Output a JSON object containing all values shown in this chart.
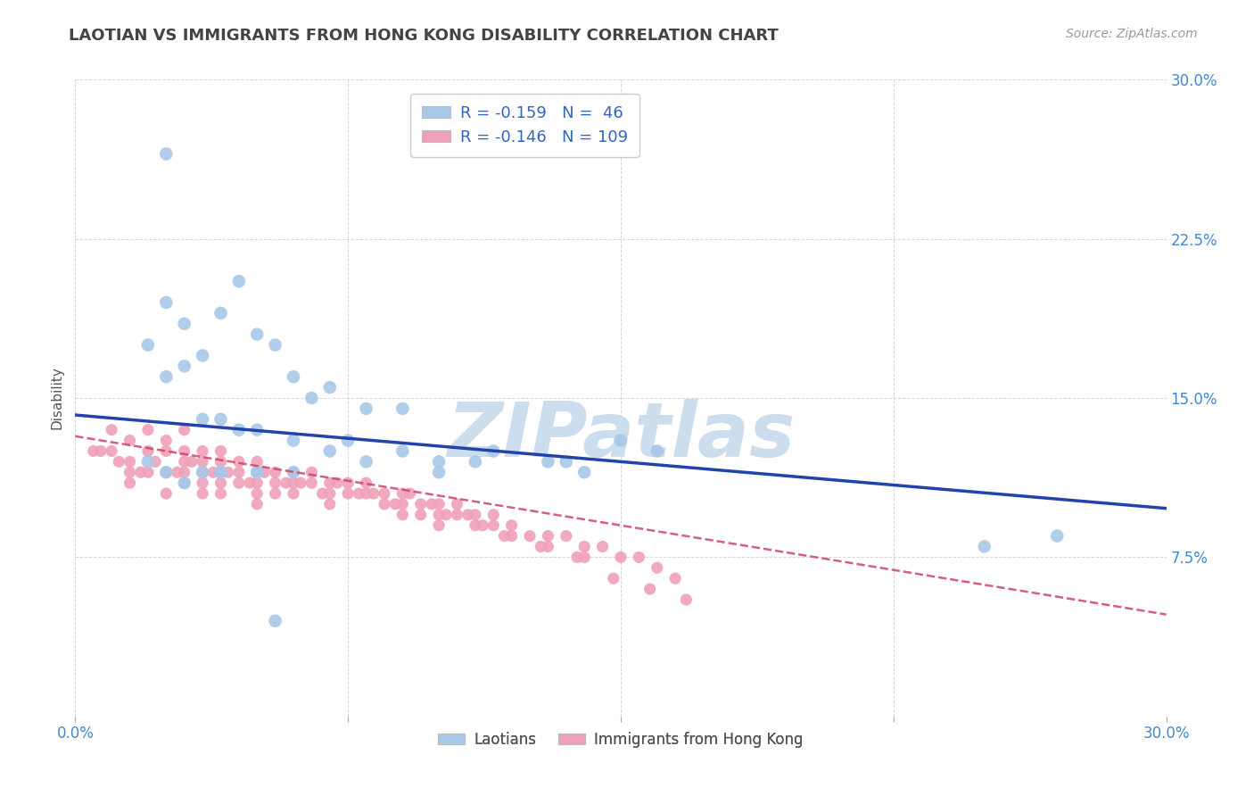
{
  "title": "LAOTIAN VS IMMIGRANTS FROM HONG KONG DISABILITY CORRELATION CHART",
  "source": "Source: ZipAtlas.com",
  "ylabel": "Disability",
  "blue_label": "Laotians",
  "pink_label": "Immigrants from Hong Kong",
  "blue_R": -0.159,
  "blue_N": 46,
  "pink_R": -0.146,
  "pink_N": 109,
  "blue_color": "#a8c8e8",
  "pink_color": "#f0a0b8",
  "blue_line_color": "#2244aa",
  "pink_line_color": "#cc4466",
  "watermark": "ZIPatlas",
  "watermark_color": "#ccdded",
  "background_color": "#ffffff",
  "grid_color": "#cccccc",
  "title_color": "#444444",
  "axis_label_color": "#4488cc",
  "legend_text_color": "#3366bb",
  "xlim": [
    0.0,
    0.3
  ],
  "ylim": [
    0.0,
    0.3
  ],
  "blue_scatter_x": [
    0.025,
    0.045,
    0.025,
    0.04,
    0.03,
    0.02,
    0.035,
    0.03,
    0.025,
    0.05,
    0.055,
    0.06,
    0.07,
    0.065,
    0.08,
    0.09,
    0.035,
    0.04,
    0.045,
    0.05,
    0.06,
    0.07,
    0.075,
    0.09,
    0.1,
    0.11,
    0.115,
    0.13,
    0.135,
    0.15,
    0.16,
    0.1,
    0.08,
    0.06,
    0.05,
    0.04,
    0.03,
    0.025,
    0.02,
    0.035,
    0.04,
    0.05,
    0.14,
    0.25,
    0.27,
    0.055
  ],
  "blue_scatter_y": [
    0.265,
    0.205,
    0.195,
    0.19,
    0.185,
    0.175,
    0.17,
    0.165,
    0.16,
    0.18,
    0.175,
    0.16,
    0.155,
    0.15,
    0.145,
    0.145,
    0.14,
    0.14,
    0.135,
    0.135,
    0.13,
    0.125,
    0.13,
    0.125,
    0.12,
    0.12,
    0.125,
    0.12,
    0.12,
    0.13,
    0.125,
    0.115,
    0.12,
    0.115,
    0.115,
    0.115,
    0.11,
    0.115,
    0.12,
    0.115,
    0.115,
    0.115,
    0.115,
    0.08,
    0.085,
    0.045
  ],
  "pink_scatter_x": [
    0.005,
    0.01,
    0.01,
    0.015,
    0.015,
    0.015,
    0.015,
    0.02,
    0.02,
    0.02,
    0.025,
    0.025,
    0.025,
    0.025,
    0.03,
    0.03,
    0.03,
    0.03,
    0.03,
    0.035,
    0.035,
    0.035,
    0.035,
    0.035,
    0.04,
    0.04,
    0.04,
    0.04,
    0.04,
    0.045,
    0.045,
    0.045,
    0.05,
    0.05,
    0.05,
    0.05,
    0.05,
    0.055,
    0.055,
    0.055,
    0.06,
    0.06,
    0.06,
    0.065,
    0.065,
    0.07,
    0.07,
    0.07,
    0.075,
    0.075,
    0.08,
    0.08,
    0.085,
    0.085,
    0.09,
    0.09,
    0.09,
    0.095,
    0.095,
    0.1,
    0.1,
    0.1,
    0.105,
    0.105,
    0.11,
    0.11,
    0.115,
    0.115,
    0.12,
    0.12,
    0.125,
    0.13,
    0.13,
    0.135,
    0.14,
    0.14,
    0.145,
    0.15,
    0.155,
    0.16,
    0.165,
    0.007,
    0.012,
    0.018,
    0.022,
    0.028,
    0.032,
    0.038,
    0.042,
    0.048,
    0.052,
    0.058,
    0.062,
    0.068,
    0.072,
    0.078,
    0.082,
    0.088,
    0.092,
    0.098,
    0.102,
    0.108,
    0.112,
    0.118,
    0.128,
    0.138,
    0.148,
    0.158,
    0.168
  ],
  "pink_scatter_y": [
    0.125,
    0.135,
    0.125,
    0.13,
    0.12,
    0.115,
    0.11,
    0.135,
    0.125,
    0.115,
    0.13,
    0.125,
    0.115,
    0.105,
    0.135,
    0.125,
    0.12,
    0.115,
    0.11,
    0.125,
    0.12,
    0.115,
    0.11,
    0.105,
    0.125,
    0.12,
    0.115,
    0.11,
    0.105,
    0.12,
    0.115,
    0.11,
    0.12,
    0.115,
    0.11,
    0.105,
    0.1,
    0.115,
    0.11,
    0.105,
    0.115,
    0.11,
    0.105,
    0.115,
    0.11,
    0.11,
    0.105,
    0.1,
    0.11,
    0.105,
    0.11,
    0.105,
    0.105,
    0.1,
    0.105,
    0.1,
    0.095,
    0.1,
    0.095,
    0.1,
    0.095,
    0.09,
    0.1,
    0.095,
    0.095,
    0.09,
    0.095,
    0.09,
    0.09,
    0.085,
    0.085,
    0.085,
    0.08,
    0.085,
    0.08,
    0.075,
    0.08,
    0.075,
    0.075,
    0.07,
    0.065,
    0.125,
    0.12,
    0.115,
    0.12,
    0.115,
    0.12,
    0.115,
    0.115,
    0.11,
    0.115,
    0.11,
    0.11,
    0.105,
    0.11,
    0.105,
    0.105,
    0.1,
    0.105,
    0.1,
    0.095,
    0.095,
    0.09,
    0.085,
    0.08,
    0.075,
    0.065,
    0.06,
    0.055
  ],
  "blue_trend_x0": 0.0,
  "blue_trend_y0": 0.142,
  "blue_trend_x1": 0.3,
  "blue_trend_y1": 0.098,
  "pink_trend_x0": 0.0,
  "pink_trend_y0": 0.132,
  "pink_trend_x1": 0.3,
  "pink_trend_y1": 0.048
}
